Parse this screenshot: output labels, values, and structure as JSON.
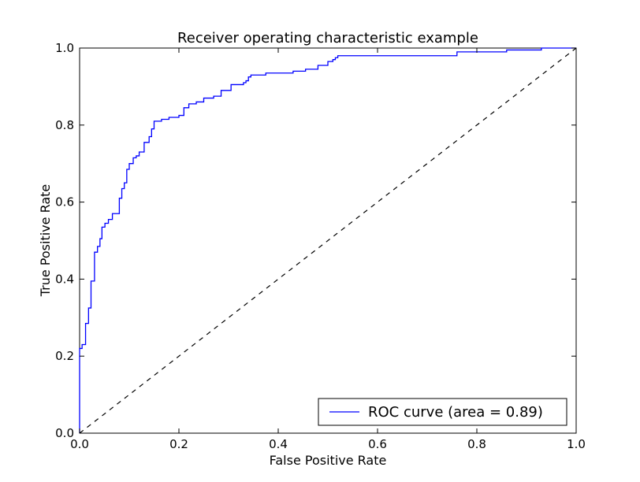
{
  "chart_data": {
    "type": "line",
    "title": "Receiver operating characteristic example",
    "xlabel": "False Positive Rate",
    "ylabel": "True Positive Rate",
    "xlim": [
      0.0,
      1.0
    ],
    "ylim": [
      0.0,
      1.0
    ],
    "xticks": [
      "0.0",
      "0.2",
      "0.4",
      "0.6",
      "0.8",
      "1.0"
    ],
    "yticks": [
      "0.0",
      "0.2",
      "0.4",
      "0.6",
      "0.8",
      "1.0"
    ],
    "grid": false,
    "legend_position": "lower-right",
    "series": [
      {
        "name": "ROC curve (area = 0.89)",
        "color": "#0000ff",
        "style": "solid",
        "x": [
          0.0,
          0.0,
          0.005,
          0.005,
          0.012,
          0.012,
          0.018,
          0.018,
          0.023,
          0.023,
          0.03,
          0.03,
          0.036,
          0.036,
          0.041,
          0.041,
          0.045,
          0.045,
          0.051,
          0.051,
          0.058,
          0.058,
          0.066,
          0.066,
          0.08,
          0.08,
          0.085,
          0.085,
          0.09,
          0.09,
          0.095,
          0.095,
          0.1,
          0.1,
          0.108,
          0.108,
          0.114,
          0.114,
          0.12,
          0.12,
          0.13,
          0.13,
          0.14,
          0.14,
          0.145,
          0.145,
          0.15,
          0.15,
          0.165,
          0.165,
          0.18,
          0.18,
          0.2,
          0.2,
          0.21,
          0.21,
          0.22,
          0.22,
          0.235,
          0.235,
          0.25,
          0.25,
          0.27,
          0.27,
          0.285,
          0.285,
          0.305,
          0.305,
          0.33,
          0.33,
          0.335,
          0.335,
          0.34,
          0.34,
          0.345,
          0.345,
          0.375,
          0.375,
          0.43,
          0.43,
          0.455,
          0.455,
          0.48,
          0.48,
          0.5,
          0.5,
          0.51,
          0.51,
          0.515,
          0.515,
          0.52,
          0.52,
          0.76,
          0.76,
          0.86,
          0.86,
          0.93,
          0.93,
          1.0
        ],
        "y": [
          0.0,
          0.22,
          0.22,
          0.23,
          0.23,
          0.285,
          0.285,
          0.325,
          0.325,
          0.395,
          0.395,
          0.47,
          0.47,
          0.485,
          0.485,
          0.505,
          0.505,
          0.535,
          0.535,
          0.545,
          0.545,
          0.555,
          0.555,
          0.57,
          0.57,
          0.61,
          0.61,
          0.635,
          0.635,
          0.65,
          0.65,
          0.685,
          0.685,
          0.7,
          0.7,
          0.715,
          0.715,
          0.72,
          0.72,
          0.73,
          0.73,
          0.755,
          0.755,
          0.77,
          0.77,
          0.79,
          0.79,
          0.81,
          0.81,
          0.815,
          0.815,
          0.82,
          0.82,
          0.825,
          0.825,
          0.845,
          0.845,
          0.855,
          0.855,
          0.86,
          0.86,
          0.87,
          0.87,
          0.875,
          0.875,
          0.89,
          0.89,
          0.905,
          0.905,
          0.91,
          0.91,
          0.915,
          0.915,
          0.925,
          0.925,
          0.93,
          0.93,
          0.935,
          0.935,
          0.94,
          0.94,
          0.945,
          0.945,
          0.955,
          0.955,
          0.965,
          0.965,
          0.97,
          0.97,
          0.975,
          0.975,
          0.98,
          0.98,
          0.99,
          0.99,
          0.995,
          0.995,
          1.0,
          1.0
        ]
      },
      {
        "color": "#000000",
        "style": "dashed",
        "x": [
          0.0,
          1.0
        ],
        "y": [
          0.0,
          1.0
        ]
      }
    ]
  }
}
